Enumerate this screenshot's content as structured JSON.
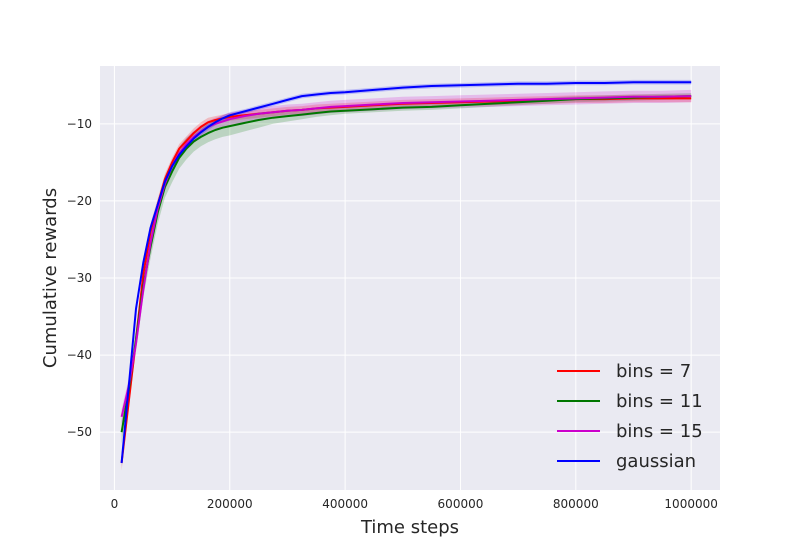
{
  "chart_data": {
    "type": "line",
    "xlabel": "Time steps",
    "ylabel": "Cumulative rewards",
    "xlim": [
      -25000,
      1050000
    ],
    "ylim": [
      -57.5,
      -2.5
    ],
    "xticks": [
      0,
      200000,
      400000,
      600000,
      800000,
      1000000
    ],
    "xtick_labels": [
      "0",
      "200000",
      "400000",
      "600000",
      "800000",
      "1000000"
    ],
    "yticks": [
      -50,
      -40,
      -30,
      -20,
      -10
    ],
    "ytick_labels": [
      "−50",
      "−40",
      "−30",
      "−20",
      "−10"
    ],
    "grid": true,
    "legend_position": "lower-right",
    "x": [
      12500,
      25000,
      37500,
      50000,
      62500,
      75000,
      87500,
      100000,
      112500,
      125000,
      137500,
      150000,
      162500,
      175000,
      187500,
      200000,
      225000,
      250000,
      275000,
      300000,
      325000,
      350000,
      375000,
      400000,
      450000,
      500000,
      550000,
      600000,
      650000,
      700000,
      750000,
      800000,
      850000,
      900000,
      950000,
      1000000
    ],
    "series": [
      {
        "name": "bins = 7",
        "color": "#ff0000",
        "values": [
          -54.0,
          -46.0,
          -38.0,
          -29.5,
          -24.0,
          -20.5,
          -17.2,
          -15.0,
          -13.2,
          -12.2,
          -11.2,
          -10.4,
          -9.8,
          -9.5,
          -9.3,
          -9.1,
          -8.9,
          -8.7,
          -8.5,
          -8.3,
          -8.2,
          -8.0,
          -7.9,
          -7.8,
          -7.6,
          -7.4,
          -7.3,
          -7.2,
          -7.1,
          -7.0,
          -6.9,
          -6.8,
          -6.8,
          -6.7,
          -6.7,
          -6.7
        ],
        "lower": [
          -55.0,
          -47.0,
          -39.0,
          -30.5,
          -25.0,
          -21.3,
          -17.9,
          -15.6,
          -13.8,
          -12.8,
          -11.8,
          -11.0,
          -10.4,
          -10.0,
          -9.8,
          -9.6,
          -9.4,
          -9.2,
          -9.0,
          -8.8,
          -8.7,
          -8.5,
          -8.4,
          -8.3,
          -8.1,
          -7.9,
          -7.8,
          -7.7,
          -7.6,
          -7.5,
          -7.4,
          -7.3,
          -7.3,
          -7.2,
          -7.2,
          -7.2
        ],
        "upper": [
          -53.0,
          -45.0,
          -37.0,
          -28.5,
          -23.0,
          -19.7,
          -16.5,
          -14.4,
          -12.6,
          -11.6,
          -10.6,
          -9.8,
          -9.2,
          -9.0,
          -8.8,
          -8.6,
          -8.4,
          -8.2,
          -8.0,
          -7.8,
          -7.7,
          -7.5,
          -7.4,
          -7.3,
          -7.1,
          -6.9,
          -6.8,
          -6.7,
          -6.6,
          -6.5,
          -6.4,
          -6.3,
          -6.3,
          -6.2,
          -6.2,
          -6.2
        ]
      },
      {
        "name": "bins = 11",
        "color": "#007700",
        "values": [
          -50.0,
          -44.5,
          -38.0,
          -31.0,
          -26.0,
          -21.5,
          -18.2,
          -16.2,
          -14.4,
          -13.2,
          -12.3,
          -11.7,
          -11.2,
          -10.8,
          -10.5,
          -10.3,
          -9.9,
          -9.5,
          -9.2,
          -9.0,
          -8.8,
          -8.6,
          -8.4,
          -8.3,
          -8.1,
          -7.9,
          -7.8,
          -7.6,
          -7.4,
          -7.2,
          -7.0,
          -6.8,
          -6.7,
          -6.6,
          -6.5,
          -6.4
        ],
        "lower": [
          -51.5,
          -46.0,
          -39.5,
          -32.5,
          -27.5,
          -23.0,
          -19.6,
          -17.6,
          -15.8,
          -14.6,
          -13.6,
          -12.9,
          -12.4,
          -12.0,
          -11.7,
          -11.5,
          -11.0,
          -10.5,
          -10.0,
          -9.7,
          -9.4,
          -9.1,
          -8.9,
          -8.7,
          -8.5,
          -8.3,
          -8.2,
          -8.0,
          -7.8,
          -7.6,
          -7.4,
          -7.2,
          -7.1,
          -7.0,
          -6.9,
          -6.8
        ],
        "upper": [
          -48.5,
          -43.0,
          -36.5,
          -29.5,
          -24.5,
          -20.0,
          -16.8,
          -14.8,
          -13.0,
          -11.8,
          -11.0,
          -10.5,
          -10.0,
          -9.6,
          -9.3,
          -9.1,
          -8.8,
          -8.5,
          -8.4,
          -8.3,
          -8.2,
          -8.1,
          -7.9,
          -7.9,
          -7.7,
          -7.5,
          -7.4,
          -7.2,
          -7.0,
          -6.8,
          -6.6,
          -6.4,
          -6.3,
          -6.2,
          -6.1,
          -6.0
        ]
      },
      {
        "name": "bins = 15",
        "color": "#cc00cc",
        "values": [
          -48.0,
          -44.0,
          -38.5,
          -31.5,
          -25.5,
          -21.0,
          -17.8,
          -15.5,
          -13.8,
          -12.6,
          -11.7,
          -11.0,
          -10.4,
          -10.0,
          -9.7,
          -9.4,
          -9.0,
          -8.7,
          -8.5,
          -8.3,
          -8.2,
          -8.0,
          -7.8,
          -7.7,
          -7.5,
          -7.3,
          -7.2,
          -7.1,
          -7.0,
          -6.9,
          -6.8,
          -6.7,
          -6.6,
          -6.5,
          -6.5,
          -6.4
        ],
        "lower": [
          -49.0,
          -45.0,
          -39.5,
          -32.5,
          -26.5,
          -22.0,
          -18.7,
          -16.4,
          -14.6,
          -13.4,
          -12.5,
          -11.8,
          -11.2,
          -10.8,
          -10.5,
          -10.2,
          -9.8,
          -9.5,
          -9.3,
          -9.1,
          -9.0,
          -8.8,
          -8.6,
          -8.5,
          -8.3,
          -8.1,
          -8.0,
          -7.9,
          -7.8,
          -7.7,
          -7.6,
          -7.5,
          -7.4,
          -7.3,
          -7.3,
          -7.2
        ],
        "upper": [
          -47.0,
          -43.0,
          -37.5,
          -30.5,
          -24.5,
          -20.0,
          -16.9,
          -14.6,
          -13.0,
          -11.8,
          -10.9,
          -10.2,
          -9.6,
          -9.2,
          -8.9,
          -8.6,
          -8.2,
          -7.9,
          -7.7,
          -7.5,
          -7.4,
          -7.2,
          -7.0,
          -6.9,
          -6.7,
          -6.5,
          -6.4,
          -6.3,
          -6.2,
          -6.1,
          -6.0,
          -5.9,
          -5.8,
          -5.7,
          -5.7,
          -5.6
        ]
      },
      {
        "name": "gaussian",
        "color": "#0000ff",
        "values": [
          -54.0,
          -44.0,
          -34.0,
          -28.0,
          -23.5,
          -20.5,
          -17.5,
          -15.5,
          -14.0,
          -12.9,
          -11.9,
          -11.1,
          -10.4,
          -9.8,
          -9.3,
          -8.9,
          -8.4,
          -7.9,
          -7.4,
          -6.9,
          -6.4,
          -6.2,
          -6.0,
          -5.9,
          -5.6,
          -5.3,
          -5.1,
          -5.0,
          -4.9,
          -4.8,
          -4.8,
          -4.7,
          -4.7,
          -4.6,
          -4.6,
          -4.6
        ],
        "lower": [
          -54.5,
          -44.5,
          -34.5,
          -28.5,
          -24.0,
          -21.0,
          -18.0,
          -16.0,
          -14.4,
          -13.3,
          -12.3,
          -11.5,
          -10.8,
          -10.2,
          -9.7,
          -9.3,
          -8.7,
          -8.2,
          -7.7,
          -7.2,
          -6.7,
          -6.5,
          -6.3,
          -6.2,
          -5.9,
          -5.6,
          -5.4,
          -5.3,
          -5.2,
          -5.1,
          -5.1,
          -5.0,
          -5.0,
          -4.9,
          -4.9,
          -4.9
        ],
        "upper": [
          -53.5,
          -43.5,
          -33.5,
          -27.5,
          -23.0,
          -20.0,
          -17.0,
          -15.0,
          -13.6,
          -12.5,
          -11.5,
          -10.7,
          -10.0,
          -9.4,
          -8.9,
          -8.5,
          -8.1,
          -7.6,
          -7.1,
          -6.6,
          -6.1,
          -5.9,
          -5.7,
          -5.6,
          -5.3,
          -5.0,
          -4.8,
          -4.7,
          -4.6,
          -4.5,
          -4.5,
          -4.4,
          -4.4,
          -4.3,
          -4.3,
          -4.3
        ]
      }
    ]
  }
}
